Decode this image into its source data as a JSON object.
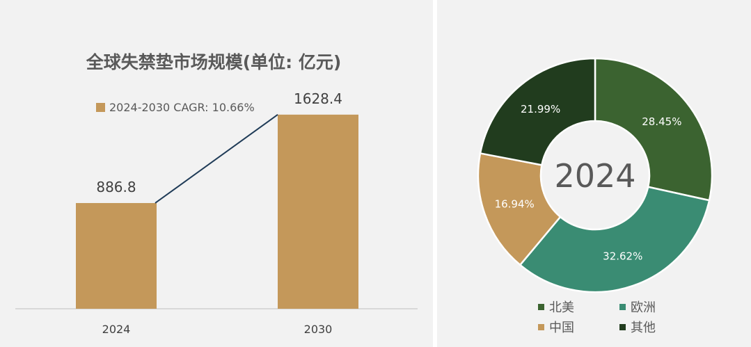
{
  "chart_data": [
    {
      "type": "bar",
      "title": "全球失禁垫市场规模(单位: 亿元)",
      "legend": "2024-2030 CAGR: 10.66%",
      "categories": [
        "2024",
        "2030"
      ],
      "values": [
        886.8,
        1628.4
      ],
      "value_labels": [
        "886.8",
        "1628.4"
      ],
      "ylim": [
        0,
        1750
      ],
      "bar_color": "#c4985a",
      "trend_line_color": "#1f3b57",
      "legend_position": "top"
    },
    {
      "type": "pie",
      "center_label": "2024",
      "slices": [
        {
          "name": "北美",
          "value": 28.45,
          "label": "28.45%",
          "color": "#3b6330"
        },
        {
          "name": "欧洲",
          "value": 32.62,
          "label": "32.62%",
          "color": "#3a8c73"
        },
        {
          "name": "中国",
          "value": 16.94,
          "label": "16.94%",
          "color": "#c4985a"
        },
        {
          "name": "其他",
          "value": 21.99,
          "label": "21.99%",
          "color": "#213c1e"
        }
      ],
      "legend_position": "bottom"
    }
  ]
}
